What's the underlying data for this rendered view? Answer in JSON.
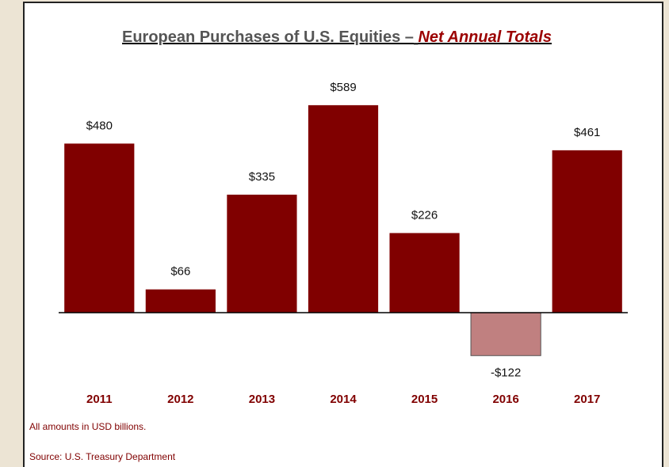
{
  "chart_data": {
    "type": "bar",
    "title": "European Purchases of U.S. Equities –",
    "title_highlight": "Net Annual Totals",
    "categories": [
      "2011",
      "2012",
      "2013",
      "2014",
      "2015",
      "2016",
      "2017"
    ],
    "values": [
      480,
      66,
      335,
      589,
      226,
      -122,
      461
    ],
    "value_labels": [
      "$480",
      "$66",
      "$335",
      "$589",
      "$226",
      "-$122",
      "$461"
    ],
    "color": "#800000",
    "negative_color": "#c08080",
    "ylim": [
      -200,
      700
    ],
    "notes": [
      "All amounts in USD billions.",
      "Source: U.S. Treasury Department"
    ]
  }
}
